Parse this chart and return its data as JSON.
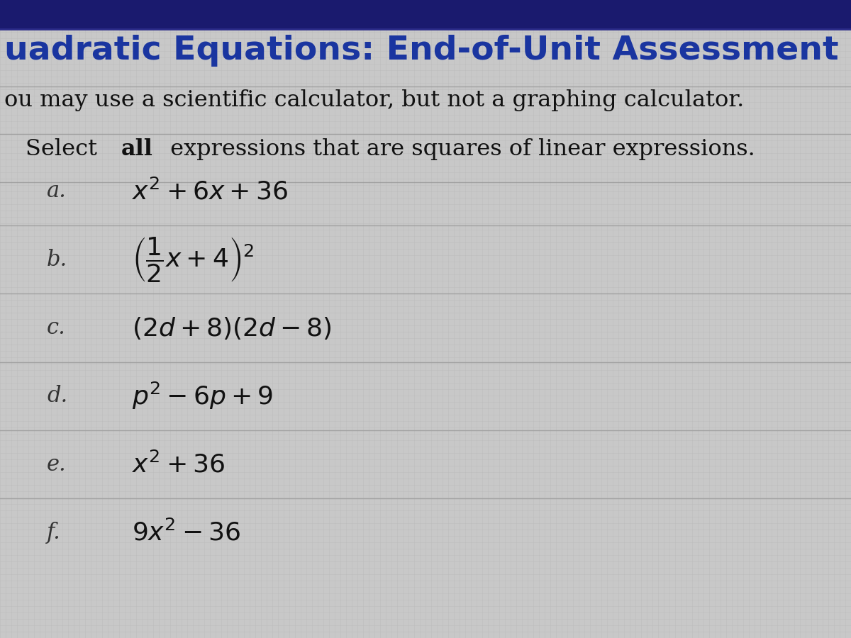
{
  "title": "uadratic Equations: End-of-Unit Assessment",
  "subtitle": "ou may use a scientific calculator, but not a graphing calculator.",
  "instruction_plain1": "Select ",
  "instruction_bold": "all",
  "instruction_plain2": " expressions that are squares of linear expressions.",
  "items": [
    {
      "label": "a.",
      "expr": "$x^2 + 6x + 36$"
    },
    {
      "label": "b.",
      "expr": "$\\left(\\dfrac{1}{2}x + 4\\right)^2$"
    },
    {
      "label": "c.",
      "expr": "$(2d + 8)(2d - 8)$"
    },
    {
      "label": "d.",
      "expr": "$p^2 - 6p + 9$"
    },
    {
      "label": "e.",
      "expr": "$x^2 + 36$"
    },
    {
      "label": "f.",
      "expr": "$9x^2 - 36$"
    }
  ],
  "bg_color": "#c8c8c8",
  "grid_color_light": "#b8b8b8",
  "grid_color_dark": "#a8a8a8",
  "header_bg": "#1a1a6e",
  "text_color": "#111111",
  "title_color": "#1a35a0",
  "label_color": "#333333",
  "font_size_title": 34,
  "font_size_subtitle": 23,
  "font_size_instruction": 23,
  "font_size_items": 26,
  "font_size_label": 22
}
